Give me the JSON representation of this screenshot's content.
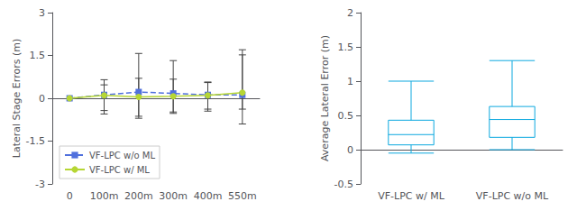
{
  "chart_data": [
    {
      "type": "line",
      "categories": [
        "0",
        "100m",
        "200m",
        "300m",
        "400m",
        "550m"
      ],
      "ylabel": "Lateral Stage Errors (m)",
      "ylim": [
        -3,
        3
      ],
      "yticks": [
        -3,
        -1.5,
        0,
        1.5,
        3
      ],
      "grid": false,
      "legend": "lower left",
      "series": [
        {
          "name": "VF-LPC w/o ML",
          "values": [
            0.0,
            0.12,
            0.22,
            0.17,
            0.12,
            0.12
          ],
          "yerr_upper": [
            0.0,
            0.35,
            1.35,
            1.15,
            0.45,
            1.4
          ],
          "yerr_lower": [
            0.0,
            0.55,
            0.85,
            0.65,
            0.5,
            0.5
          ],
          "marker": "square",
          "line_style": "dashed"
        },
        {
          "name": "VF-LPC w/ ML",
          "values": [
            0.0,
            0.1,
            0.05,
            0.07,
            0.1,
            0.2
          ],
          "yerr_upper": [
            0.0,
            0.55,
            0.65,
            0.6,
            0.45,
            1.5
          ],
          "yerr_lower": [
            0.0,
            0.65,
            0.75,
            0.6,
            0.55,
            1.1
          ],
          "marker": "circle",
          "line_style": "solid"
        }
      ]
    },
    {
      "type": "boxplot",
      "categories": [
        "VF-LPC w/ ML",
        "VF-LPC w/o ML"
      ],
      "ylabel": "Average Lateral Error (m)",
      "ylim": [
        -0.5,
        2.0
      ],
      "yticks": [
        -0.5,
        0.0,
        0.5,
        1.0,
        1.5,
        2.0
      ],
      "grid": false,
      "boxes": [
        {
          "whislo": -0.05,
          "q1": 0.07,
          "med": 0.22,
          "q3": 0.43,
          "whishi": 1.0
        },
        {
          "whislo": 0.0,
          "q1": 0.18,
          "med": 0.44,
          "q3": 0.63,
          "whishi": 1.3
        }
      ]
    }
  ]
}
